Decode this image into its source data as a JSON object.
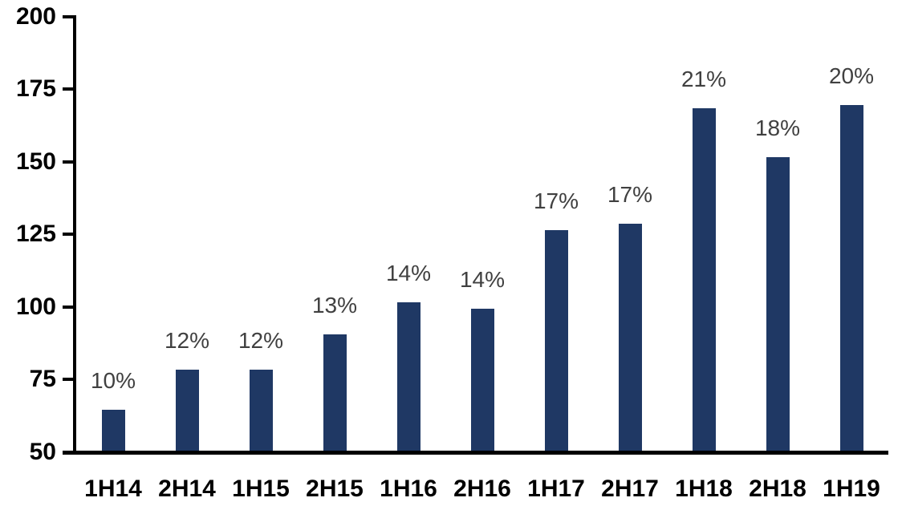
{
  "chart_data": {
    "type": "bar",
    "categories": [
      "1H14",
      "2H14",
      "1H15",
      "2H15",
      "1H16",
      "2H16",
      "1H17",
      "2H17",
      "1H18",
      "2H18",
      "1H19"
    ],
    "values": [
      64,
      78,
      78,
      90,
      101,
      99,
      126,
      128,
      168,
      151,
      169
    ],
    "data_labels": [
      "10%",
      "12%",
      "12%",
      "13%",
      "14%",
      "14%",
      "17%",
      "17%",
      "21%",
      "18%",
      "20%"
    ],
    "ylim": [
      50,
      200
    ],
    "yticks": [
      50,
      75,
      100,
      125,
      150,
      175,
      200
    ],
    "grid": false,
    "legend": false,
    "bar_color": "#1F3864",
    "data_label_color": "#404040",
    "axis_color": "#000000",
    "background_color": "#FFFFFF"
  }
}
